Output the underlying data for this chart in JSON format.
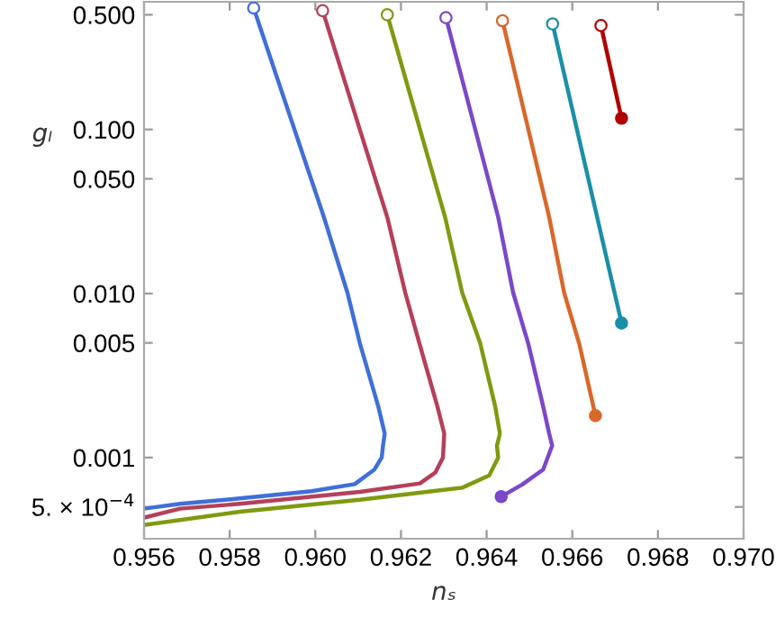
{
  "chart_data": {
    "type": "line",
    "xlabel": "nₛ",
    "ylabel": "gₗ",
    "log": "y",
    "xlim": [
      0.956,
      0.97
    ],
    "xticks": [
      0.956,
      0.958,
      {
        "value": 0.96,
        "label": "0.960"
      },
      0.962,
      0.964,
      0.966,
      0.968,
      {
        "value": 0.97,
        "label": "0.970"
      }
    ],
    "ylim": [
      0.00032,
      0.6
    ],
    "yticks": [
      {
        "value": 0.0005,
        "label": "5. × 10$^{−4}$"
      },
      {
        "value": 0.001,
        "label": "0.001"
      },
      {
        "value": 0.005,
        "label": "0.005"
      },
      {
        "value": 0.01,
        "label": "0.010"
      },
      {
        "value": 0.05,
        "label": "0.050"
      },
      {
        "value": 0.1,
        "label": "0.100"
      },
      {
        "value": 0.5,
        "label": "0.500"
      }
    ],
    "grid": false,
    "line_style": "solid",
    "series": [
      {
        "color": "#3f6fd8",
        "x": [
          0.95856,
          0.9602,
          0.96075,
          0.96104,
          0.96147,
          0.96162,
          0.96158,
          0.96155,
          0.96138,
          0.96092,
          0.95991,
          0.95823,
          0.95684,
          0.956
        ],
        "values": [
          0.55,
          0.0292,
          0.0101,
          0.00497,
          0.00205,
          0.0014,
          0.00118,
          0.001,
          0.000845,
          0.000689,
          0.000623,
          0.000563,
          0.000522,
          0.000488
        ]
      },
      {
        "color": "#b5405a",
        "x": [
          0.96017,
          0.96168,
          0.9621,
          0.96243,
          0.96285,
          0.96301,
          0.96298,
          0.9628,
          0.96244,
          0.96104,
          0.95823,
          0.95684,
          0.956
        ],
        "values": [
          0.53,
          0.0292,
          0.0101,
          0.00497,
          0.00205,
          0.0014,
          0.001,
          0.000809,
          0.000695,
          0.000618,
          0.000522,
          0.000488,
          0.00043
        ]
      },
      {
        "color": "#7f9a10",
        "x": [
          0.96168,
          0.96303,
          0.96343,
          0.96385,
          0.9642,
          0.96431,
          0.96424,
          0.96427,
          0.96406,
          0.96343,
          0.96104,
          0.95824,
          0.956
        ],
        "values": [
          0.5,
          0.0292,
          0.0101,
          0.00497,
          0.00205,
          0.0014,
          0.00118,
          0.001,
          0.000777,
          0.000655,
          0.000553,
          0.000468,
          0.000388
        ]
      },
      {
        "color": "#7b48c8",
        "x": [
          0.96305,
          0.96427,
          0.96462,
          0.96497,
          0.96532,
          0.96546,
          0.96553,
          0.96532,
          0.96483,
          0.96434
        ],
        "values": [
          0.48,
          0.0292,
          0.0101,
          0.00497,
          0.00205,
          0.0014,
          0.00118,
          0.000845,
          0.000684,
          0.000578
        ]
      },
      {
        "color": "#d8682a",
        "x": [
          0.96437,
          0.96546,
          0.96581,
          0.96616,
          0.96654
        ],
        "values": [
          0.46,
          0.0292,
          0.0101,
          0.00497,
          0.0018
        ]
      },
      {
        "color": "#1a8fa8",
        "x": [
          0.96554,
          0.96658,
          0.96715
        ],
        "values": [
          0.44,
          0.0292,
          0.0066
        ]
      },
      {
        "color": "#b00000",
        "x": [
          0.96667,
          0.96715
        ],
        "values": [
          0.43,
          0.117
        ]
      },
      {
        "type": "scatter",
        "marker": "circle",
        "color": "#ffffff",
        "x": [
          0.95856,
          0.96017,
          0.96168,
          0.96305,
          0.96437,
          0.96554,
          0.96667
        ],
        "values": [
          0.55,
          0.53,
          0.5,
          0.48,
          0.46,
          0.44,
          0.43
        ],
        "colors": [
          "#3f6fd8",
          "#b5405a",
          "#7f9a10",
          "#7b48c8",
          "#d8682a",
          "#1a8fa8",
          "#b00000"
        ]
      },
      {
        "type": "scatter",
        "marker": "circle",
        "x": [
          0.96434,
          0.96654,
          0.96715,
          0.96715
        ],
        "values": [
          0.000578,
          0.0018,
          0.0066,
          0.117
        ],
        "colors": [
          "#7b48c8",
          "#d8682a",
          "#1a8fa8",
          "#b00000"
        ]
      }
    ]
  }
}
